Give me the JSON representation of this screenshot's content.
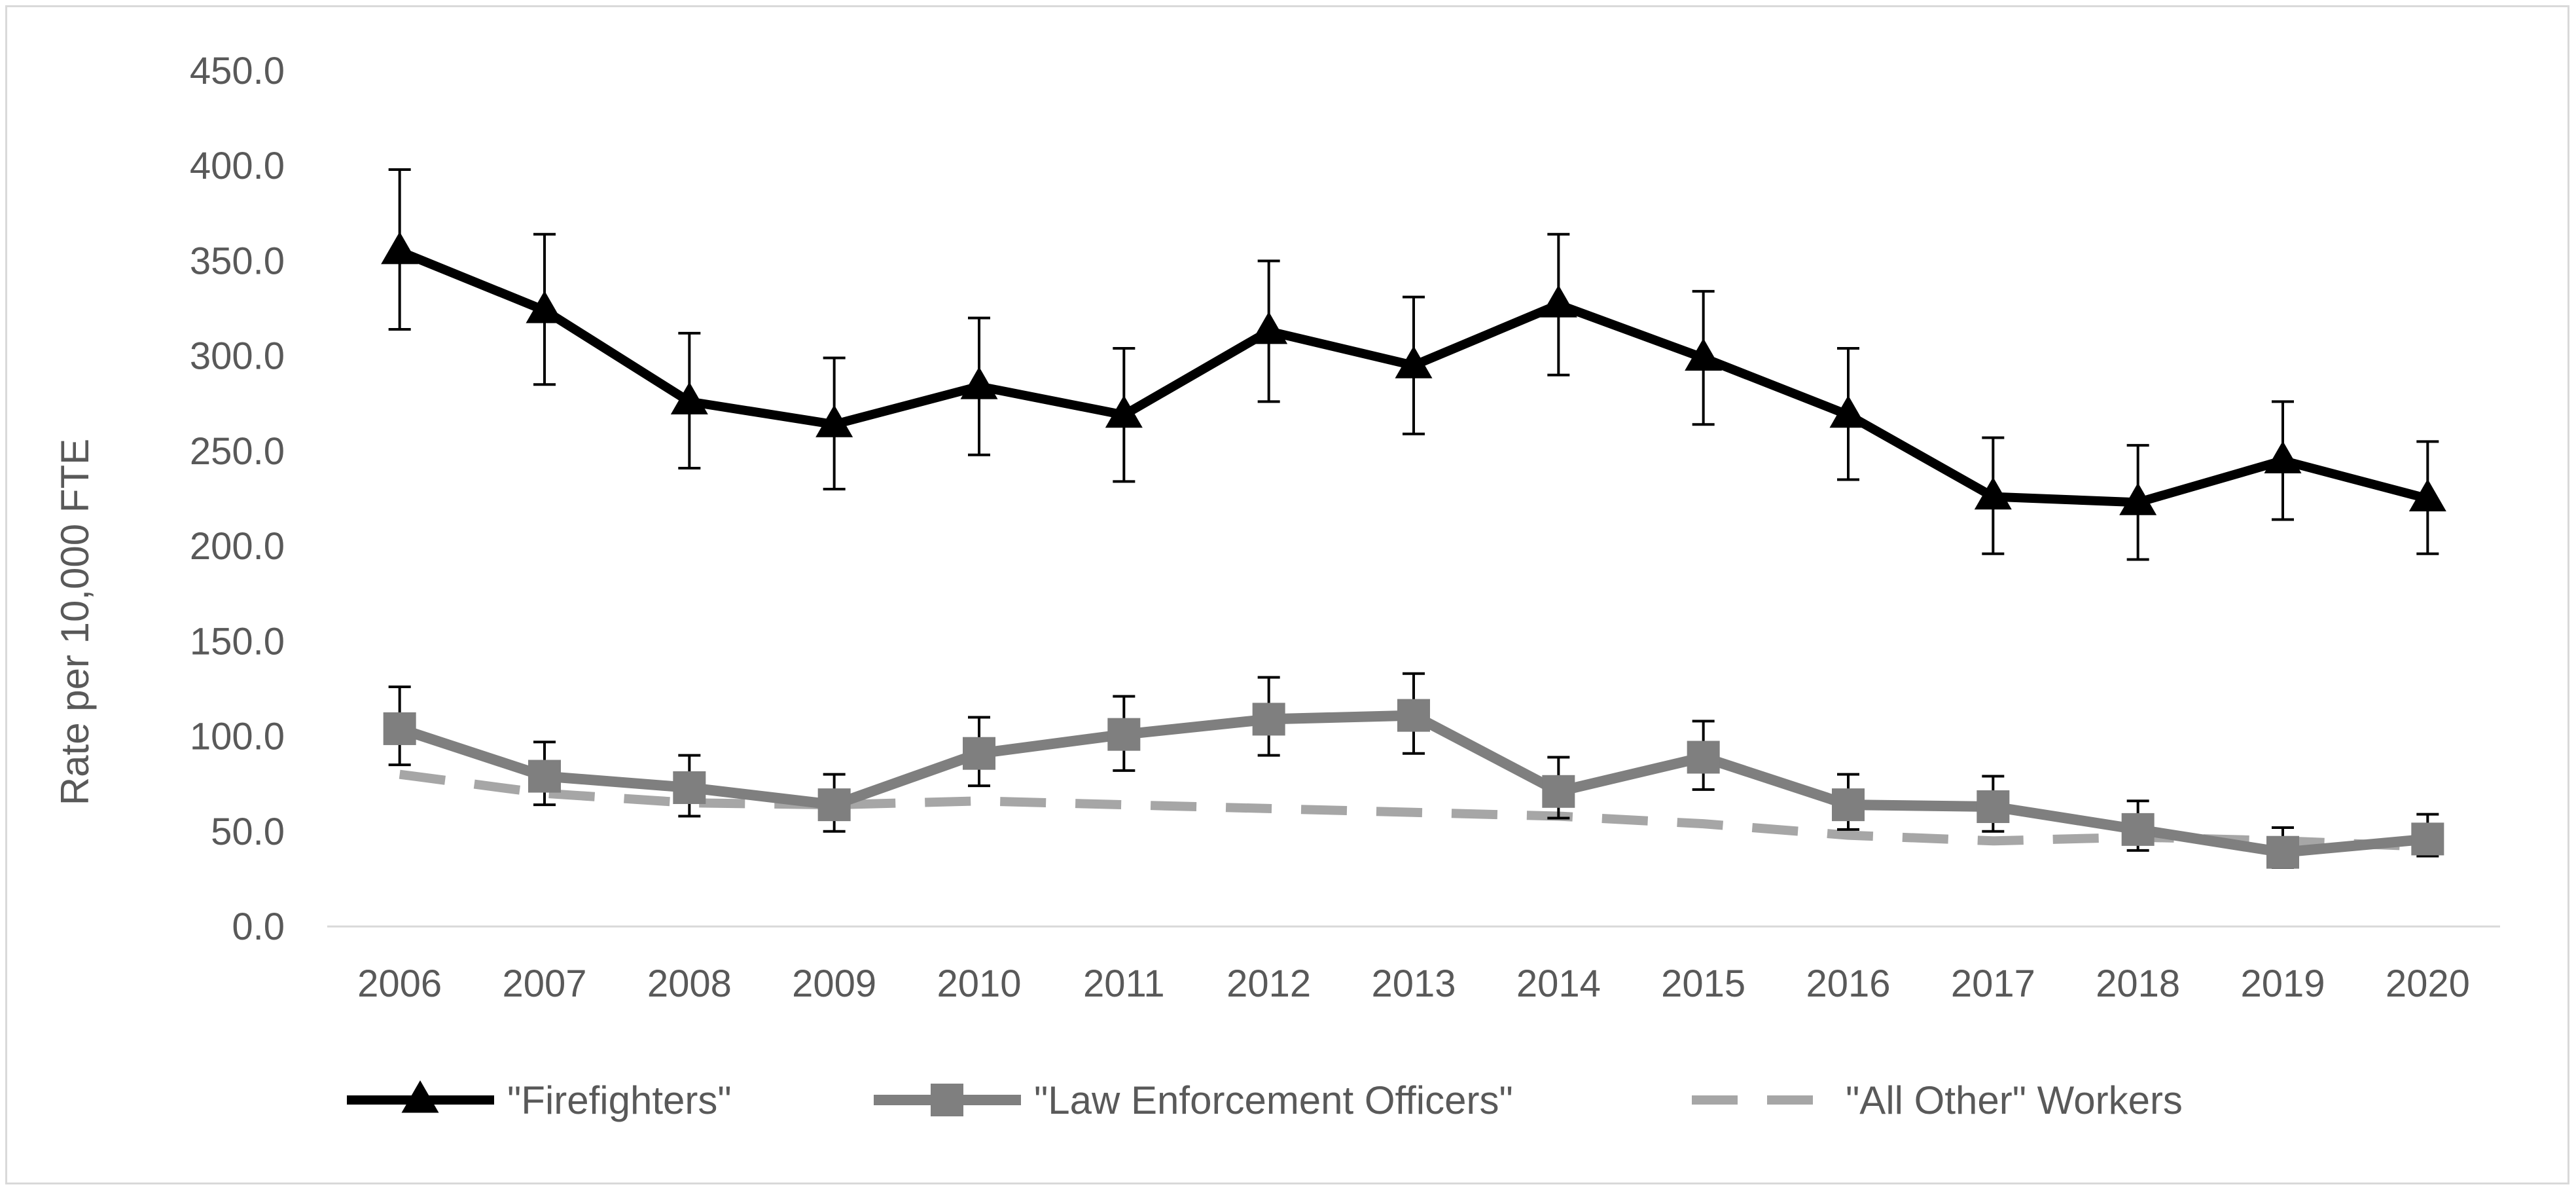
{
  "chart_data": {
    "type": "line",
    "title": "",
    "xlabel": "",
    "ylabel": "Rate per 10,000 FTE",
    "ylim": [
      0,
      450
    ],
    "ytick_step": 50,
    "ytick_labels": [
      "0.0",
      "50.0",
      "100.0",
      "150.0",
      "200.0",
      "250.0",
      "300.0",
      "350.0",
      "400.0",
      "450.0"
    ],
    "grid": false,
    "legend_position": "bottom",
    "categories": [
      "2006",
      "2007",
      "2008",
      "2009",
      "2010",
      "2011",
      "2012",
      "2013",
      "2014",
      "2015",
      "2016",
      "2017",
      "2018",
      "2019",
      "2020"
    ],
    "series": [
      {
        "name": "\"Firefighters\"",
        "color": "#000000",
        "marker": "triangle",
        "line_style": "solid",
        "values": [
          355,
          324,
          276,
          264,
          284,
          269,
          313,
          295,
          327,
          299,
          269,
          226,
          223,
          245,
          225
        ],
        "error_low": [
          314,
          285,
          241,
          230,
          248,
          234,
          276,
          259,
          290,
          264,
          235,
          196,
          193,
          214,
          196
        ],
        "error_high": [
          398,
          364,
          312,
          299,
          320,
          304,
          350,
          331,
          364,
          334,
          304,
          257,
          253,
          276,
          255
        ]
      },
      {
        "name": "\"Law Enforcement Officers\"",
        "color": "#7f7f7f",
        "marker": "square",
        "line_style": "solid",
        "values": [
          104,
          79,
          73,
          64,
          91,
          101,
          109,
          111,
          71,
          89,
          64,
          63,
          51,
          39,
          46
        ],
        "error_low": [
          85,
          64,
          58,
          50,
          74,
          82,
          90,
          91,
          57,
          72,
          51,
          50,
          40,
          31,
          37
        ],
        "error_high": [
          126,
          97,
          90,
          80,
          110,
          121,
          131,
          133,
          89,
          108,
          80,
          79,
          66,
          52,
          59
        ]
      },
      {
        "name": "\"All Other\" Workers",
        "color": "#a6a6a6",
        "marker": "none",
        "line_style": "dashed",
        "values": [
          80,
          70,
          65,
          64,
          66,
          64,
          62,
          60,
          58,
          54,
          48,
          45,
          47,
          45,
          42
        ]
      }
    ]
  }
}
